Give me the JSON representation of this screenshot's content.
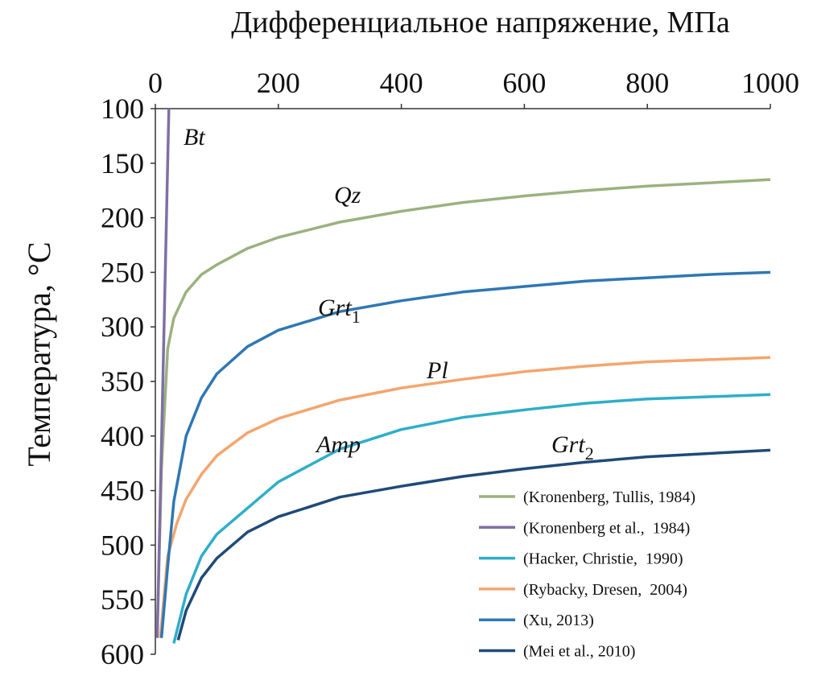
{
  "chart_data": {
    "type": "line",
    "title": "Дифференциальное напряжение, МПа",
    "y_label": "Температура, °C",
    "xlim": [
      0,
      1000
    ],
    "xticks": [
      0,
      200,
      400,
      600,
      800,
      1000
    ],
    "ylim": [
      100,
      600
    ],
    "yticks": [
      100,
      150,
      200,
      250,
      300,
      350,
      400,
      450,
      500,
      550,
      600
    ],
    "y_inverted": true,
    "x_axis_position": "top",
    "grid": false,
    "legend": "lower-right",
    "series": [
      {
        "name": "(Kronenberg, Tullis, 1984)",
        "color": "#9cb17f",
        "x": [
          3,
          10,
          20,
          30,
          50,
          75,
          100,
          150,
          200,
          300,
          400,
          500,
          600,
          700,
          800,
          900,
          1000
        ],
        "values": [
          583,
          430,
          320,
          292,
          268,
          252,
          243,
          228,
          218,
          204,
          194,
          186,
          180,
          175,
          171,
          168,
          165
        ]
      },
      {
        "name": "(Kronenberg et al.,  1984)",
        "color": "#7f6fa6",
        "x": [
          3,
          22
        ],
        "values": [
          585,
          100
        ]
      },
      {
        "name": "(Hacker, Christie,  1990)",
        "color": "#2eaec8",
        "x": [
          30,
          50,
          75,
          100,
          150,
          200,
          300,
          400,
          500,
          600,
          700,
          800,
          900,
          1000
        ],
        "values": [
          590,
          545,
          510,
          490,
          466,
          442,
          412,
          394,
          383,
          376,
          370,
          366,
          364,
          362
        ]
      },
      {
        "name": "(Rybacky, Dresen,  2004)",
        "color": "#f4a56e",
        "x": [
          8,
          20,
          35,
          50,
          75,
          100,
          150,
          200,
          300,
          400,
          500,
          600,
          700,
          800,
          900,
          1000
        ],
        "values": [
          585,
          510,
          480,
          458,
          435,
          418,
          397,
          384,
          367,
          356,
          348,
          341,
          336,
          332,
          330,
          328
        ]
      },
      {
        "name": "(Xu, 2013)",
        "color": "#2f77b4",
        "x": [
          10,
          20,
          30,
          50,
          75,
          100,
          150,
          200,
          300,
          400,
          500,
          600,
          700,
          800,
          900,
          1000
        ],
        "values": [
          585,
          520,
          460,
          400,
          365,
          343,
          318,
          303,
          286,
          276,
          268,
          263,
          258,
          255,
          252,
          250
        ]
      },
      {
        "name": "(Mei et al., 2010)",
        "color": "#1f4a78",
        "x": [
          37,
          50,
          75,
          100,
          150,
          200,
          300,
          400,
          500,
          600,
          700,
          800,
          900,
          1000
        ],
        "values": [
          587,
          560,
          530,
          512,
          488,
          474,
          456,
          446,
          437,
          430,
          424,
          419,
          416,
          413
        ]
      }
    ],
    "annotations": [
      {
        "text": "Bt"
      },
      {
        "text": "Qz"
      },
      {
        "text": "Grt",
        "sub": "1"
      },
      {
        "text": "Pl"
      },
      {
        "text": "Amp"
      },
      {
        "text": "Grt",
        "sub": "2"
      }
    ]
  }
}
